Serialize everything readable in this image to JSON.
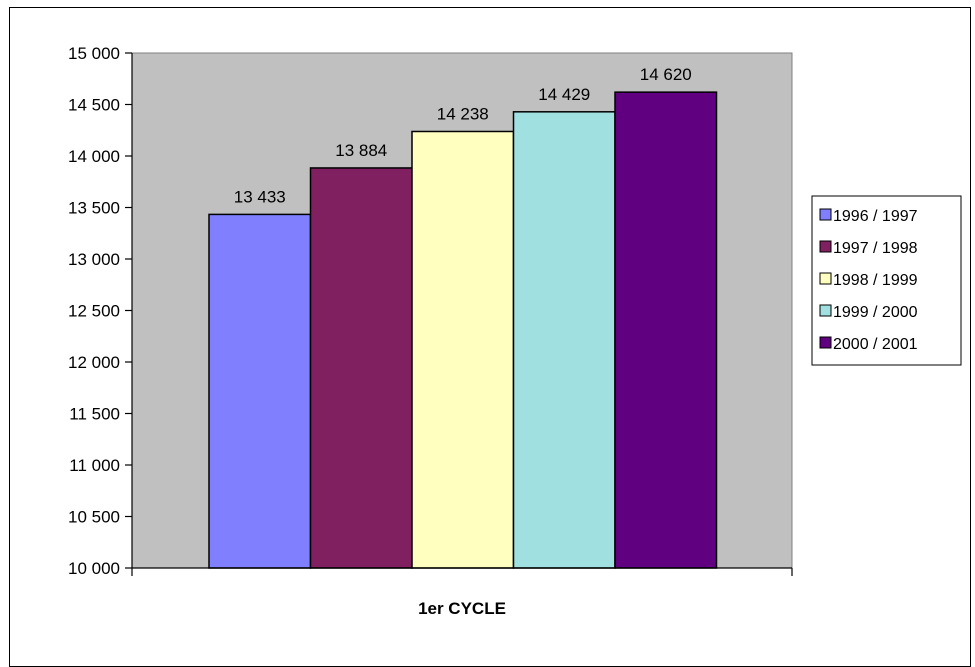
{
  "chart_data": {
    "type": "bar",
    "categories": [
      "1er CYCLE"
    ],
    "series": [
      {
        "name": "1996 / 1997",
        "values": [
          13433
        ],
        "color": "#8080ff",
        "label": "13 433"
      },
      {
        "name": "1997 / 1998",
        "values": [
          13884
        ],
        "color": "#802060",
        "label": "13 884"
      },
      {
        "name": "1998 / 1999",
        "values": [
          14238
        ],
        "color": "#ffffc0",
        "label": "14 238"
      },
      {
        "name": "1999 / 2000",
        "values": [
          14429
        ],
        "color": "#a0e0e0",
        "label": "14 429"
      },
      {
        "name": "2000 / 2001",
        "values": [
          14620
        ],
        "color": "#600080",
        "label": "14 620"
      }
    ],
    "ylim": [
      10000,
      15000
    ],
    "yticks": [
      {
        "value": 15000,
        "label": "15 000"
      },
      {
        "value": 14500,
        "label": "14 500"
      },
      {
        "value": 14000,
        "label": "14 000"
      },
      {
        "value": 13500,
        "label": "13 500"
      },
      {
        "value": 13000,
        "label": "13 000"
      },
      {
        "value": 12500,
        "label": "12 500"
      },
      {
        "value": 12000,
        "label": "12 000"
      },
      {
        "value": 11500,
        "label": "11 500"
      },
      {
        "value": 11000,
        "label": "11 000"
      },
      {
        "value": 10500,
        "label": "10 500"
      },
      {
        "value": 10000,
        "label": "10 000"
      }
    ],
    "plot_background": "#c0c0c0",
    "grid": false,
    "legend_position": "right"
  }
}
